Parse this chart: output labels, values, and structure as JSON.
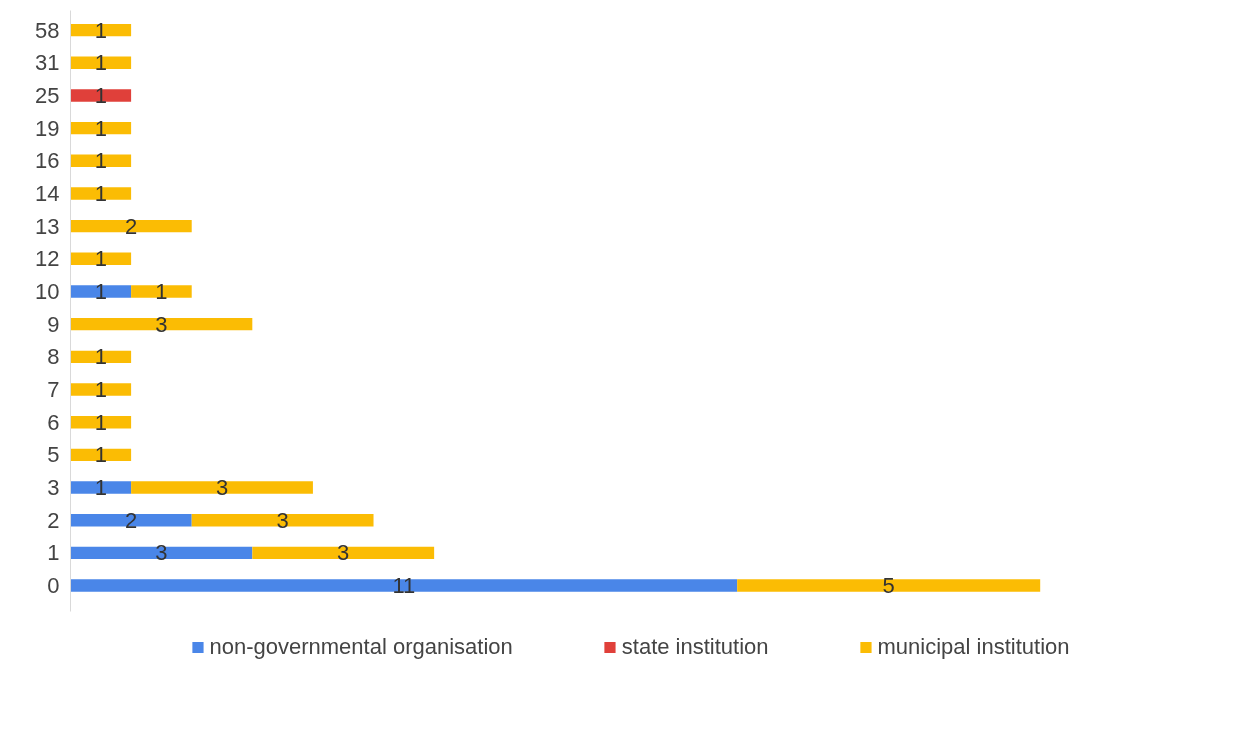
{
  "chart_data": {
    "type": "bar",
    "orientation": "horizontal",
    "stacked": true,
    "data_labels": true,
    "grid": false,
    "legend": "bottom",
    "categories": [
      "58",
      "31",
      "25",
      "19",
      "16",
      "14",
      "13",
      "12",
      "10",
      "9",
      "8",
      "7",
      "6",
      "5",
      "3",
      "2",
      "1",
      "0"
    ],
    "series": [
      {
        "name": "non-governmental organisation",
        "color": "#4a86e8",
        "values": [
          null,
          null,
          null,
          null,
          null,
          null,
          null,
          null,
          1,
          null,
          null,
          null,
          null,
          null,
          1,
          2,
          3,
          11
        ]
      },
      {
        "name": "state institution",
        "color": "#e0403a",
        "values": [
          null,
          null,
          1,
          null,
          null,
          null,
          null,
          null,
          null,
          null,
          null,
          null,
          null,
          null,
          null,
          null,
          null,
          null
        ]
      },
      {
        "name": "municipal institution",
        "color": "#fbbc04",
        "values": [
          1,
          1,
          null,
          1,
          1,
          1,
          2,
          1,
          1,
          3,
          1,
          1,
          1,
          1,
          3,
          3,
          3,
          5
        ]
      }
    ]
  }
}
